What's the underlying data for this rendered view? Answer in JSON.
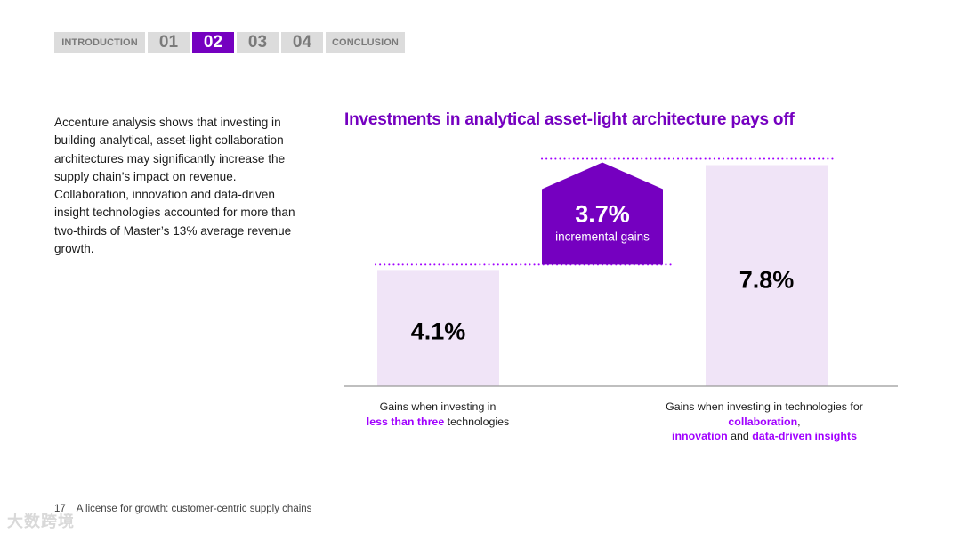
{
  "nav": {
    "tabs": [
      {
        "label": "INTRODUCTION",
        "active": false
      },
      {
        "label": "01",
        "active": false
      },
      {
        "label": "02",
        "active": true
      },
      {
        "label": "03",
        "active": false
      },
      {
        "label": "04",
        "active": false
      },
      {
        "label": "CONCLUSION",
        "active": false
      }
    ]
  },
  "body_text": "Accenture analysis shows that investing in building analytical, asset-light collaboration architectures may significantly increase the supply chain’s impact on revenue. Collaboration, innovation and data-driven insight technologies accounted for more than two-thirds of Master’s 13% average revenue growth.",
  "chart_data": {
    "type": "bar",
    "title": "Investments in analytical asset-light architecture pays off",
    "categories": [
      "Gains when investing in less than three technologies",
      "Gains when investing in technologies for collaboration, innovation and data-driven insights"
    ],
    "values": [
      4.1,
      7.8
    ],
    "value_labels": [
      "4.1%",
      "7.8%"
    ],
    "difference": {
      "value": 3.7,
      "label": "3.7%",
      "caption": "incremental gains"
    },
    "ylim": [
      0,
      8.1
    ],
    "xlabel": "",
    "ylabel": "",
    "grid": false
  },
  "category_labels": {
    "a": {
      "pre": "Gains when investing in",
      "highlight": "less than three",
      "post": " technologies"
    },
    "b": {
      "pre": "Gains when investing in technologies for ",
      "h1": "collaboration",
      "sep1": ",",
      "h2": "innovation",
      "sep2": " and ",
      "h3": "data-driven insights"
    }
  },
  "footer": {
    "page": "17",
    "title": "A license for growth: customer-centric supply chains"
  },
  "watermark": "大数跨境",
  "colors": {
    "accent": "#7500c0",
    "highlight": "#a100ff",
    "bar_fill": "#f0e4f7",
    "axis": "#999999",
    "nav_bg": "#dcdcdc"
  }
}
